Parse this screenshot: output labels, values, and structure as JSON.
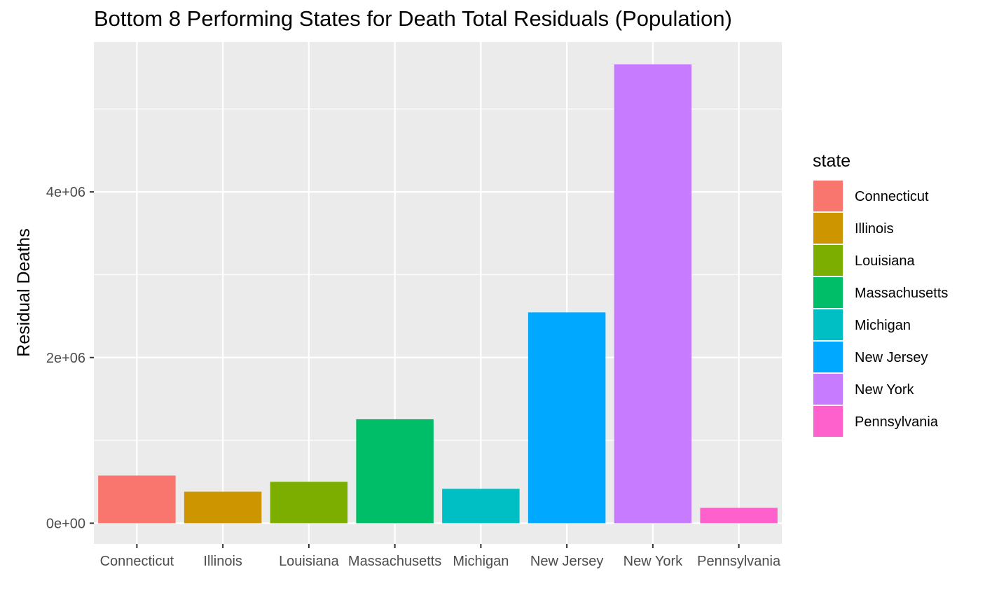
{
  "chart_data": {
    "type": "bar",
    "title": "Bottom 8 Performing States for Death Total Residuals (Population)",
    "xlabel": "",
    "ylabel": "Residual Deaths",
    "categories": [
      "Connecticut",
      "Illinois",
      "Louisiana",
      "Massachusetts",
      "Michigan",
      "New Jersey",
      "New York",
      "Pennsylvania"
    ],
    "values": [
      575000,
      380000,
      500000,
      1255000,
      415000,
      2545000,
      5540000,
      185000
    ],
    "colors": [
      "#F8766D",
      "#CD9600",
      "#7CAE00",
      "#00BE67",
      "#00BFC4",
      "#00A9FF",
      "#C77CFF",
      "#FF61CC"
    ],
    "ylim": [
      -250000,
      5810000
    ],
    "yticks": [
      0,
      2000000,
      4000000
    ],
    "ytick_labels": [
      "0e+00",
      "2e+06",
      "4e+06"
    ],
    "grid": true,
    "panel_background": "#EBEBEB",
    "legend": {
      "title": "state",
      "position": "right",
      "entries": [
        "Connecticut",
        "Illinois",
        "Louisiana",
        "Massachusetts",
        "Michigan",
        "New Jersey",
        "New York",
        "Pennsylvania"
      ]
    }
  }
}
